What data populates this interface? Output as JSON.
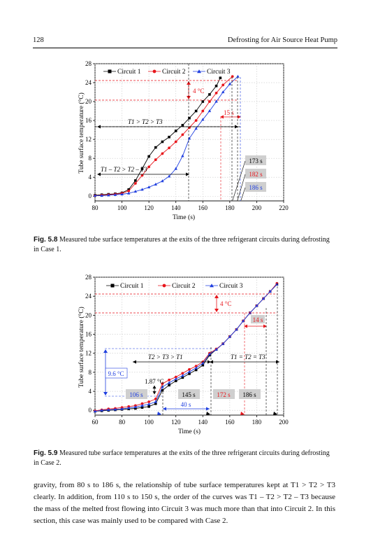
{
  "header": {
    "page_number": "128",
    "running_title": "Defrosting for Air Source Heat Pump"
  },
  "figures": [
    {
      "caption_label": "Fig. 5.8",
      "caption_text": "Measured tube surface temperatures at the exits of the three refrigerant circuits during defrosting in Case 1.",
      "annotations": {
        "delta_temp": "4 °C",
        "relation_a": "T1 > T2 > T3",
        "relation_b": "T1 – T2 > T2 – T3",
        "dt_15": "15 s",
        "t173": "173 s",
        "t182": "182 s",
        "t186": "186 s"
      }
    },
    {
      "caption_label": "Fig. 5.9",
      "caption_text": "Measured tube surface temperatures at the exits of the three refrigerant circuits during defrosting in Case 2.",
      "annotations": {
        "delta_temp": "4 °C",
        "dt_14": "14 s",
        "relation_a": "T2 > T3 > T1",
        "relation_b": "T1 = T2 = T3",
        "dt_96": "9.6 °C",
        "dt_187": "1.87 °C",
        "t106": "106 s",
        "t145": "145 s",
        "t172": "172 s",
        "t186": "186 s",
        "t40": "40 s"
      }
    }
  ],
  "paragraph": "gravity, from 80 s to 186 s, the relationship of tube surface temperatures kept at T1 > T2 > T3 clearly. In addition, from 110 s to 150 s, the order of the curves was T1 – T2 > T2 – T3 because the mass of the melted frost flowing into Circuit 3 was much more than that into Circuit 2. In this section, this case was mainly used to be compared with Case 2.",
  "chart_data": [
    {
      "type": "line",
      "xlabel": "Time (s)",
      "ylabel": "Tube surface temperature (°C)",
      "xlim": [
        80,
        220
      ],
      "ylim": [
        -1,
        28
      ],
      "xticks": [
        80,
        100,
        120,
        140,
        160,
        180,
        200,
        220
      ],
      "yticks": [
        0,
        4,
        8,
        12,
        16,
        20,
        24,
        28
      ],
      "legend_position": "top",
      "grid": true,
      "series": [
        {
          "name": "Circuit 1",
          "color": "#000000",
          "marker": "square",
          "x": [
            80,
            85,
            90,
            95,
            100,
            105,
            110,
            115,
            120,
            125,
            130,
            135,
            140,
            145,
            150,
            155,
            160,
            165,
            170,
            173
          ],
          "y": [
            0.2,
            0.3,
            0.4,
            0.5,
            0.7,
            1.4,
            3.3,
            5.8,
            8.4,
            10.3,
            11.5,
            12.5,
            13.8,
            15.0,
            16.5,
            18.0,
            20.0,
            21.5,
            23.3,
            25.0
          ]
        },
        {
          "name": "Circuit 2",
          "color": "#e8151b",
          "marker": "circle",
          "x": [
            80,
            85,
            90,
            95,
            100,
            105,
            110,
            115,
            120,
            125,
            130,
            135,
            140,
            145,
            150,
            155,
            160,
            165,
            170,
            175,
            182
          ],
          "y": [
            0.1,
            0.2,
            0.3,
            0.4,
            0.6,
            1.1,
            2.7,
            4.4,
            6.2,
            7.7,
            9.0,
            10.2,
            11.5,
            13.0,
            14.5,
            16.0,
            18.0,
            20.0,
            21.8,
            23.5,
            25.3
          ]
        },
        {
          "name": "Circuit 3",
          "color": "#1f3fe0",
          "marker": "triangle",
          "x": [
            80,
            85,
            90,
            95,
            100,
            105,
            110,
            115,
            120,
            125,
            130,
            135,
            140,
            145,
            150,
            155,
            160,
            165,
            170,
            175,
            180,
            186
          ],
          "y": [
            0.1,
            0.1,
            0.2,
            0.3,
            0.4,
            0.6,
            1.0,
            1.4,
            1.9,
            2.5,
            3.2,
            4.2,
            5.8,
            8.5,
            12.2,
            14.3,
            16.2,
            18.0,
            20.0,
            22.0,
            23.7,
            25.3
          ]
        }
      ]
    },
    {
      "type": "line",
      "xlabel": "Time (s)",
      "ylabel": "Tube surface temperature (°C)",
      "xlim": [
        60,
        200
      ],
      "ylim": [
        -1,
        28
      ],
      "xticks": [
        60,
        80,
        100,
        120,
        140,
        160,
        180,
        200
      ],
      "yticks": [
        0,
        4,
        8,
        12,
        16,
        20,
        24,
        28
      ],
      "legend_position": "top",
      "grid": true,
      "series": [
        {
          "name": "Circuit 1",
          "color": "#000000",
          "marker": "square",
          "x": [
            60,
            65,
            70,
            75,
            80,
            85,
            90,
            95,
            100,
            105,
            110,
            115,
            120,
            125,
            130,
            135,
            140,
            145,
            150,
            155,
            160,
            165,
            170,
            175,
            180,
            185,
            190,
            195
          ],
          "y": [
            -0.2,
            -0.1,
            0.0,
            0.1,
            0.2,
            0.3,
            0.4,
            0.6,
            0.8,
            1.4,
            4.2,
            5.3,
            6.2,
            6.9,
            7.7,
            8.5,
            9.5,
            11.6,
            12.8,
            14.0,
            15.5,
            17.0,
            18.8,
            20.5,
            22.0,
            23.5,
            25.0,
            26.5
          ]
        },
        {
          "name": "Circuit 2",
          "color": "#e8151b",
          "marker": "circle",
          "x": [
            60,
            65,
            70,
            75,
            80,
            85,
            90,
            95,
            100,
            105,
            110,
            115,
            120,
            125,
            130,
            135,
            140,
            145,
            150,
            155,
            160,
            165,
            170,
            175,
            180,
            185,
            190,
            195
          ],
          "y": [
            -0.1,
            0.1,
            0.3,
            0.4,
            0.6,
            0.8,
            1.0,
            1.4,
            1.8,
            2.4,
            5.6,
            6.4,
            7.0,
            7.8,
            8.6,
            9.3,
            10.2,
            12.0,
            12.9,
            14.0,
            15.5,
            17.0,
            18.8,
            20.5,
            22.0,
            23.5,
            25.0,
            26.7
          ]
        },
        {
          "name": "Circuit 3",
          "color": "#1f3fe0",
          "marker": "triangle",
          "x": [
            60,
            65,
            70,
            75,
            80,
            85,
            90,
            95,
            100,
            105,
            110,
            115,
            120,
            125,
            130,
            135,
            140,
            145,
            150,
            155,
            160,
            165,
            170,
            175,
            180,
            185,
            190,
            195
          ],
          "y": [
            -0.2,
            0.0,
            0.1,
            0.2,
            0.3,
            0.5,
            0.7,
            1.0,
            1.3,
            1.8,
            4.9,
            5.8,
            6.6,
            7.3,
            8.1,
            8.9,
            9.9,
            11.8,
            12.8,
            14.0,
            15.5,
            17.0,
            18.8,
            20.5,
            22.0,
            23.5,
            25.0,
            26.5
          ]
        }
      ]
    }
  ]
}
